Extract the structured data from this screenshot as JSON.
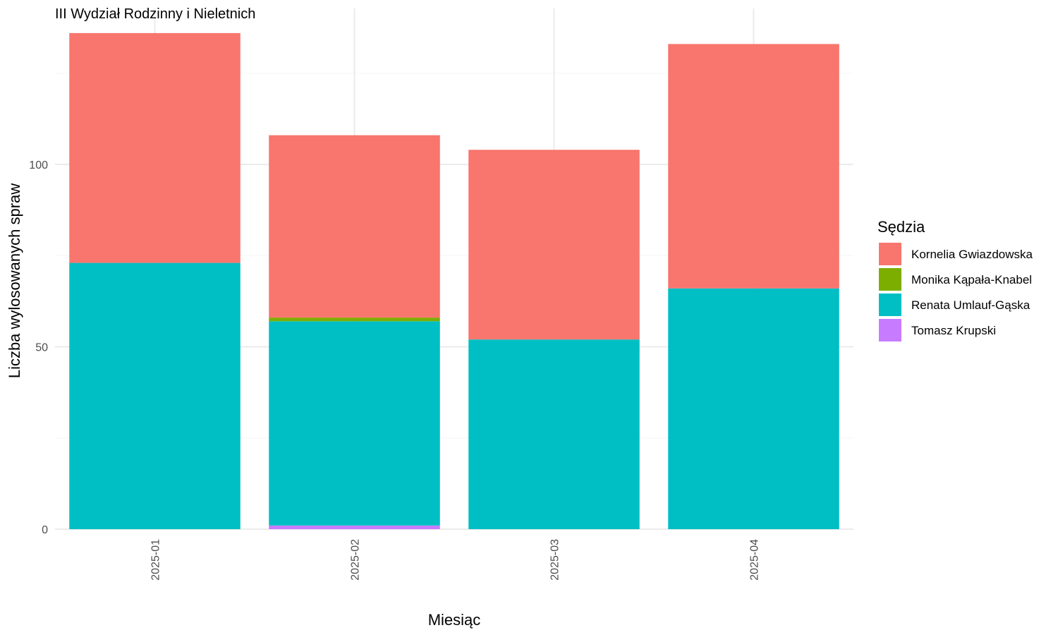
{
  "chart_data": {
    "type": "bar",
    "stacked": true,
    "title": "III Wydział Rodzinny i Nieletnich",
    "xlabel": "Miesiąc",
    "ylabel": "Liczba wylosowanych spraw",
    "categories": [
      "2025-01",
      "2025-02",
      "2025-03",
      "2025-04"
    ],
    "series": [
      {
        "name": "Tomasz Krupski",
        "color": "#C77CFF",
        "values": [
          0,
          1,
          0,
          0
        ]
      },
      {
        "name": "Renata Umlauf-Gąska",
        "color": "#00BFC4",
        "values": [
          73,
          56,
          52,
          66
        ]
      },
      {
        "name": "Monika Kąpała-Knabel",
        "color": "#7CAE00",
        "values": [
          0,
          1,
          0,
          0
        ]
      },
      {
        "name": "Kornelia Gwiazdowska",
        "color": "#F8766D",
        "values": [
          63,
          50,
          52,
          67
        ]
      }
    ],
    "legend": {
      "title": "Sędzia",
      "position": "right",
      "items": [
        "Kornelia Gwiazdowska",
        "Monika Kąpała-Knabel",
        "Renata Umlauf-Gąska",
        "Tomasz Krupski"
      ]
    },
    "yticks": [
      0,
      50,
      100
    ],
    "ylim": [
      0,
      140
    ],
    "grid": true,
    "x_tick_rotation": "vertical"
  }
}
